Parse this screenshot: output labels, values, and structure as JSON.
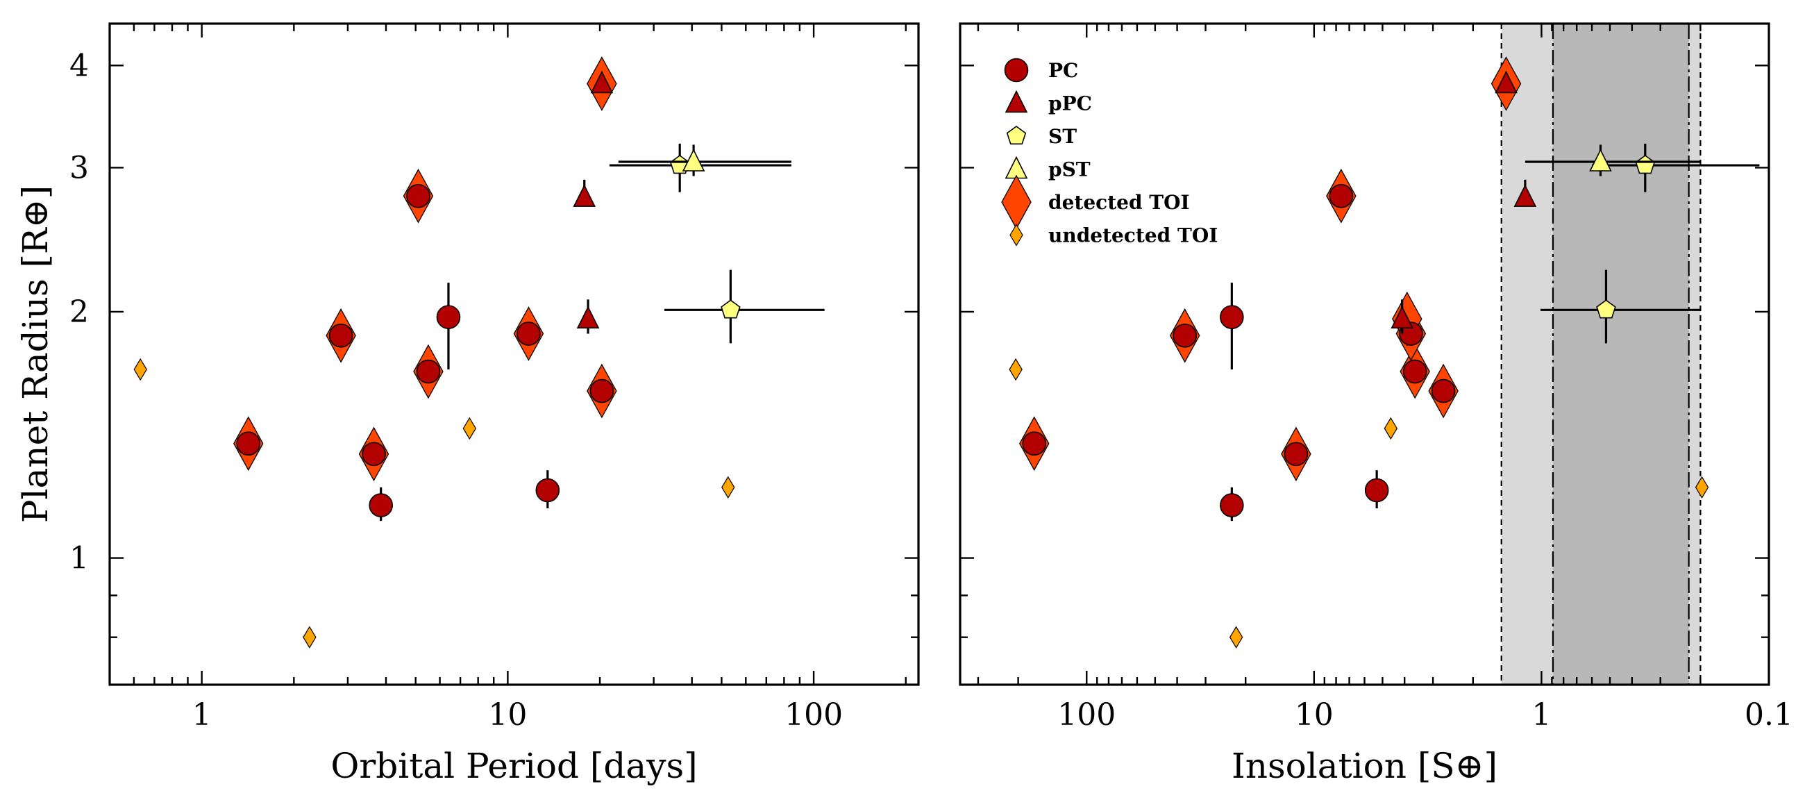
{
  "chart_data": [
    {
      "type": "scatter",
      "panel": "left",
      "xlabel": "Orbital Period [days]",
      "ylabel": "Planet Radius [R⊕]",
      "xscale": "log",
      "yscale": "log",
      "xlim": [
        0.5,
        220
      ],
      "ylim": [
        0.7,
        4.5
      ],
      "xticklabels": [
        "1",
        "10",
        "100"
      ],
      "yticklabels": [
        "1",
        "2",
        "3",
        "4"
      ],
      "series": [
        {
          "name": "detected TOI",
          "points": [
            {
              "x": 1.42,
              "y": 1.38
            },
            {
              "x": 2.85,
              "y": 1.87
            },
            {
              "x": 3.65,
              "y": 1.34
            },
            {
              "x": 5.1,
              "y": 2.77
            },
            {
              "x": 5.5,
              "y": 1.69
            },
            {
              "x": 11.7,
              "y": 1.88
            },
            {
              "x": 20.3,
              "y": 1.6
            },
            {
              "x": 20.3,
              "y": 3.8
            }
          ]
        },
        {
          "name": "undetected TOI",
          "points": [
            {
              "x": 0.63,
              "y": 1.7
            },
            {
              "x": 2.25,
              "y": 0.8
            },
            {
              "x": 7.5,
              "y": 1.44
            },
            {
              "x": 52.5,
              "y": 1.22
            }
          ]
        },
        {
          "name": "PC",
          "points": [
            {
              "x": 1.42,
              "y": 1.38
            },
            {
              "x": 2.85,
              "y": 1.87
            },
            {
              "x": 3.65,
              "y": 1.34
            },
            {
              "x": 3.85,
              "y": 1.16,
              "yerr": [
                0.05,
                0.06
              ]
            },
            {
              "x": 5.1,
              "y": 2.77
            },
            {
              "x": 5.5,
              "y": 1.69
            },
            {
              "x": 6.4,
              "y": 1.97,
              "yerr": [
                0.27,
                0.2
              ]
            },
            {
              "x": 11.7,
              "y": 1.88
            },
            {
              "x": 13.5,
              "y": 1.21,
              "yerr": [
                0.06,
                0.07
              ]
            },
            {
              "x": 20.3,
              "y": 1.6
            }
          ]
        },
        {
          "name": "pPC",
          "points": [
            {
              "x": 17.8,
              "y": 2.76,
              "yerr": [
                0.07,
                0.14
              ]
            },
            {
              "x": 18.3,
              "y": 1.96,
              "yerr": [
                0.08,
                0.11
              ]
            },
            {
              "x": 20.3,
              "y": 3.8
            }
          ]
        },
        {
          "name": "ST",
          "points": [
            {
              "x": 36.5,
              "y": 3.02,
              "yerr": [
                0.22,
                0.19
              ],
              "xerr": [
                15,
                48
              ]
            },
            {
              "x": 53.5,
              "y": 2.01,
              "yerr": [
                0.18,
                0.24
              ],
              "xerr": [
                21,
                55
              ]
            }
          ]
        },
        {
          "name": "pST",
          "points": [
            {
              "x": 40.5,
              "y": 3.05,
              "yerr": [
                0.12,
                0.15
              ],
              "xerr": [
                17.5,
                44
              ]
            }
          ]
        }
      ]
    },
    {
      "type": "scatter",
      "panel": "right",
      "xlabel": "Insolation [S⊕]",
      "xscale": "log",
      "xinverted": true,
      "yscale": "log",
      "xlim": [
        360,
        0.1
      ],
      "ylim": [
        0.7,
        4.5
      ],
      "xticklabels": [
        "100",
        "10",
        "1",
        "0.1"
      ],
      "habitable_zone": {
        "outer": [
          1.5,
          0.2
        ],
        "inner": [
          0.89,
          0.225
        ]
      },
      "series": [
        {
          "name": "detected TOI",
          "points": [
            {
              "x": 170,
              "y": 1.38
            },
            {
              "x": 37,
              "y": 1.87
            },
            {
              "x": 12,
              "y": 1.34
            },
            {
              "x": 7.6,
              "y": 2.77
            },
            {
              "x": 3.6,
              "y": 1.69
            },
            {
              "x": 3.75,
              "y": 1.88
            },
            {
              "x": 2.7,
              "y": 1.6
            },
            {
              "x": 1.43,
              "y": 3.8
            },
            {
              "x": 3.9,
              "y": 1.96
            }
          ]
        },
        {
          "name": "undetected TOI",
          "points": [
            {
              "x": 205,
              "y": 1.7
            },
            {
              "x": 22,
              "y": 0.8
            },
            {
              "x": 4.6,
              "y": 1.44
            },
            {
              "x": 0.197,
              "y": 1.22
            }
          ]
        },
        {
          "name": "PC",
          "points": [
            {
              "x": 170,
              "y": 1.38
            },
            {
              "x": 37,
              "y": 1.87
            },
            {
              "x": 23,
              "y": 1.97,
              "yerr": [
                0.27,
                0.2
              ]
            },
            {
              "x": 23,
              "y": 1.16,
              "yerr": [
                0.05,
                0.06
              ]
            },
            {
              "x": 12,
              "y": 1.34
            },
            {
              "x": 7.6,
              "y": 2.77
            },
            {
              "x": 5.3,
              "y": 1.21,
              "yerr": [
                0.06,
                0.07
              ]
            },
            {
              "x": 3.6,
              "y": 1.69
            },
            {
              "x": 3.75,
              "y": 1.88
            },
            {
              "x": 2.7,
              "y": 1.6
            }
          ]
        },
        {
          "name": "pPC",
          "points": [
            {
              "x": 1.43,
              "y": 3.8
            },
            {
              "x": 1.18,
              "y": 2.76,
              "yerr": [
                0.07,
                0.14
              ]
            },
            {
              "x": 4.1,
              "y": 1.96,
              "yerr": [
                0.08,
                0.11
              ]
            }
          ]
        },
        {
          "name": "ST",
          "points": [
            {
              "x": 0.35,
              "y": 3.02,
              "yerr": [
                0.22,
                0.19
              ],
              "xerr": [
                0.24,
                0.25
              ]
            },
            {
              "x": 0.52,
              "y": 2.01,
              "yerr": [
                0.18,
                0.24
              ],
              "xerr": [
                0.32,
                0.49
              ]
            }
          ]
        },
        {
          "name": "pST",
          "points": [
            {
              "x": 0.55,
              "y": 3.05,
              "yerr": [
                0.12,
                0.15
              ],
              "xerr": [
                0.35,
                0.63
              ]
            }
          ]
        }
      ]
    }
  ],
  "legend": {
    "placement": "upper-left of right panel",
    "entries": [
      {
        "name": "PC",
        "label": "PC"
      },
      {
        "name": "pPC",
        "label": "pPC"
      },
      {
        "name": "ST",
        "label": "ST"
      },
      {
        "name": "pST",
        "label": "pST"
      },
      {
        "name": "detected TOI",
        "label": "detected TOI"
      },
      {
        "name": "undetected TOI",
        "label": "undetected TOI"
      }
    ]
  },
  "colors": {
    "PC": "#b30000",
    "pPC": "#b30000",
    "ST": "#ffff80",
    "pST": "#ffff80",
    "detected TOI": "#ff4500",
    "undetected TOI": "#ffa500",
    "hz_outer": "#d9d9d9",
    "hz_inner": "#b8b8b8"
  }
}
